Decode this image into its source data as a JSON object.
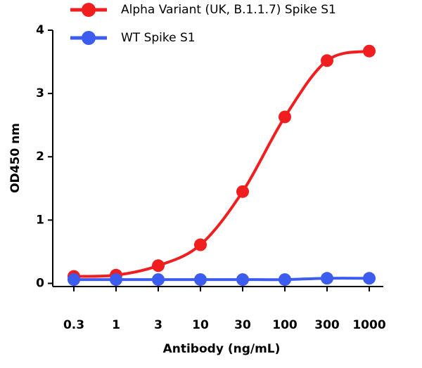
{
  "chart_data": {
    "type": "line",
    "x_label": "Antibody (ng/mL)",
    "y_label": "OD450 nm",
    "categories": [
      "0.3",
      "1",
      "3",
      "10",
      "30",
      "100",
      "300",
      "1000"
    ],
    "series": [
      {
        "name": "Alpha Variant (UK, B.1.1.7) Spike S1",
        "color": "#f01e1e",
        "values": [
          0.11,
          0.13,
          0.28,
          0.61,
          1.45,
          2.63,
          3.52,
          3.67
        ]
      },
      {
        "name": "WT Spike S1",
        "color": "#3c5cf0",
        "values": [
          0.06,
          0.06,
          0.06,
          0.06,
          0.06,
          0.06,
          0.08,
          0.08
        ]
      }
    ],
    "ylim": [
      -0.05,
      4
    ],
    "yticks": [
      0,
      1,
      2,
      3,
      4
    ],
    "legend": "top"
  }
}
